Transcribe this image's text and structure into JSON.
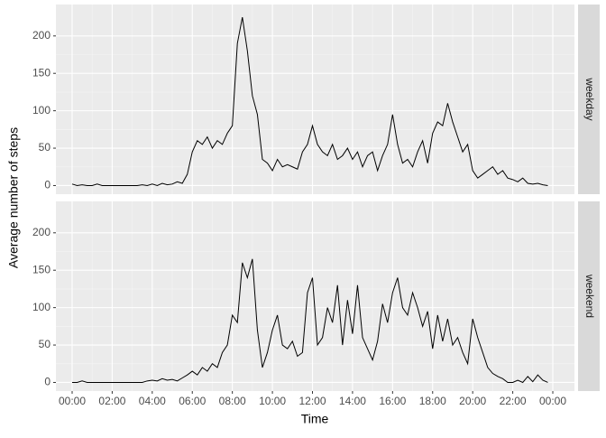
{
  "chart_data": {
    "type": "line",
    "facets": true,
    "x_label": "Time",
    "y_label": "Average number of steps",
    "x": [
      0,
      0.25,
      0.5,
      0.75,
      1,
      1.25,
      1.5,
      1.75,
      2,
      2.25,
      2.5,
      2.75,
      3,
      3.25,
      3.5,
      3.75,
      4,
      4.25,
      4.5,
      4.75,
      5,
      5.25,
      5.5,
      5.75,
      6,
      6.25,
      6.5,
      6.75,
      7,
      7.25,
      7.5,
      7.75,
      8,
      8.25,
      8.5,
      8.75,
      9,
      9.25,
      9.5,
      9.75,
      10,
      10.25,
      10.5,
      10.75,
      11,
      11.25,
      11.5,
      11.75,
      12,
      12.25,
      12.5,
      12.75,
      13,
      13.25,
      13.5,
      13.75,
      14,
      14.25,
      14.5,
      14.75,
      15,
      15.25,
      15.5,
      15.75,
      16,
      16.25,
      16.5,
      16.75,
      17,
      17.25,
      17.5,
      17.75,
      18,
      18.25,
      18.5,
      18.75,
      19,
      19.25,
      19.5,
      19.75,
      20,
      20.25,
      20.5,
      20.75,
      21,
      21.25,
      21.5,
      21.75,
      22,
      22.25,
      22.5,
      22.75,
      23,
      23.25,
      23.5,
      23.75
    ],
    "series": [
      {
        "name": "weekday",
        "color": "#000000",
        "values": [
          2,
          0,
          1,
          0,
          0,
          2,
          0,
          0,
          0,
          0,
          0,
          0,
          0,
          0,
          1,
          0,
          2,
          0,
          3,
          1,
          2,
          5,
          3,
          15,
          45,
          60,
          55,
          65,
          50,
          60,
          55,
          70,
          80,
          190,
          225,
          180,
          120,
          95,
          35,
          30,
          20,
          35,
          25,
          28,
          25,
          22,
          45,
          55,
          80,
          55,
          45,
          40,
          55,
          35,
          40,
          50,
          35,
          45,
          25,
          40,
          45,
          20,
          40,
          55,
          95,
          55,
          30,
          35,
          25,
          45,
          60,
          30,
          70,
          85,
          80,
          110,
          85,
          65,
          45,
          55,
          20,
          10,
          15,
          20,
          25,
          15,
          20,
          10,
          8,
          5,
          10,
          3,
          2,
          3,
          1,
          0
        ]
      },
      {
        "name": "weekend",
        "color": "#000000",
        "values": [
          0,
          0,
          2,
          0,
          0,
          0,
          0,
          0,
          0,
          0,
          0,
          0,
          0,
          0,
          0,
          2,
          3,
          2,
          5,
          3,
          4,
          2,
          6,
          10,
          15,
          10,
          20,
          15,
          25,
          20,
          40,
          50,
          90,
          80,
          160,
          140,
          165,
          70,
          20,
          40,
          70,
          90,
          50,
          45,
          55,
          35,
          40,
          120,
          140,
          50,
          60,
          100,
          80,
          130,
          50,
          110,
          65,
          130,
          60,
          45,
          30,
          55,
          105,
          80,
          120,
          140,
          100,
          90,
          120,
          100,
          75,
          95,
          45,
          90,
          55,
          85,
          50,
          60,
          40,
          25,
          85,
          60,
          40,
          20,
          12,
          8,
          5,
          0,
          0,
          3,
          0,
          8,
          1,
          10,
          3,
          0
        ]
      }
    ],
    "xlim": [
      -0.81,
      25.08
    ],
    "xticks": [
      {
        "value": 0,
        "label": "00:00"
      },
      {
        "value": 2,
        "label": "02:00"
      },
      {
        "value": 4,
        "label": "04:00"
      },
      {
        "value": 6,
        "label": "06:00"
      },
      {
        "value": 8,
        "label": "08:00"
      },
      {
        "value": 10,
        "label": "10:00"
      },
      {
        "value": 12,
        "label": "12:00"
      },
      {
        "value": 14,
        "label": "14:00"
      },
      {
        "value": 16,
        "label": "16:00"
      },
      {
        "value": 18,
        "label": "18:00"
      },
      {
        "value": 20,
        "label": "20:00"
      },
      {
        "value": 22,
        "label": "22:00"
      },
      {
        "value": 24,
        "label": "00:00"
      }
    ],
    "ylim": [
      -11.5,
      242
    ],
    "yticks": [
      0,
      50,
      100,
      150,
      200
    ],
    "grid": true
  }
}
